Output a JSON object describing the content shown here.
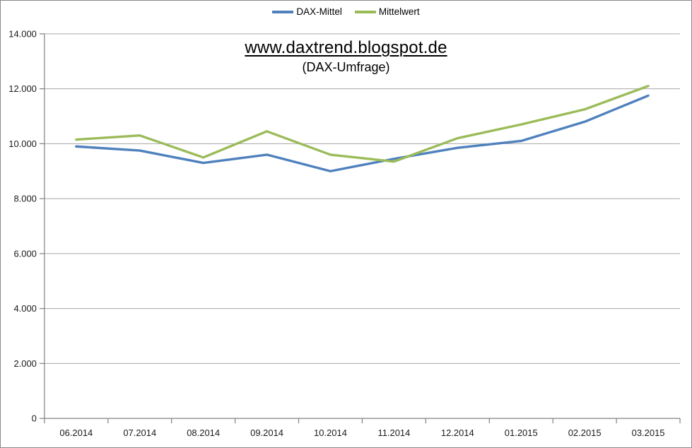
{
  "page": {
    "background": "#FFFFFF",
    "border_color": "#898989"
  },
  "legend": {
    "items": [
      {
        "label": "DAX-Mittel",
        "color": "#4F81BD"
      },
      {
        "label": "Mittelwert",
        "color": "#9BBB59"
      }
    ]
  },
  "title": {
    "main": "www.daxtrend.blogspot.de",
    "subtitle": "(DAX-Umfrage)"
  },
  "chart_data": {
    "type": "line",
    "title": "www.daxtrend.blogspot.de",
    "subtitle": "(DAX-Umfrage)",
    "xlabel": "",
    "ylabel": "",
    "categories": [
      "06.2014",
      "07.2014",
      "08.2014",
      "09.2014",
      "10.2014",
      "11.2014",
      "12.2014",
      "01.2015",
      "02.2015",
      "03.2015"
    ],
    "series": [
      {
        "name": "DAX-Mittel",
        "color": "#4F81BD",
        "values": [
          9900,
          9750,
          9300,
          9600,
          9000,
          9450,
          9850,
          10100,
          10800,
          11750
        ]
      },
      {
        "name": "Mittelwert",
        "color": "#9BBB59",
        "values": [
          10150,
          10300,
          9500,
          10450,
          9600,
          9350,
          10200,
          10700,
          11250,
          12100
        ]
      }
    ],
    "ylim": [
      0,
      14000
    ],
    "ytick_step": 2000,
    "ytick_labels": [
      "0",
      "2.000",
      "4.000",
      "6.000",
      "8.000",
      "10.000",
      "12.000",
      "14.000"
    ],
    "grid": true,
    "legend_position": "top",
    "colors": {
      "gridline": "#A6A6A6",
      "axis": "#808080",
      "tick": "#808080",
      "text": "#1A1A1A"
    }
  }
}
